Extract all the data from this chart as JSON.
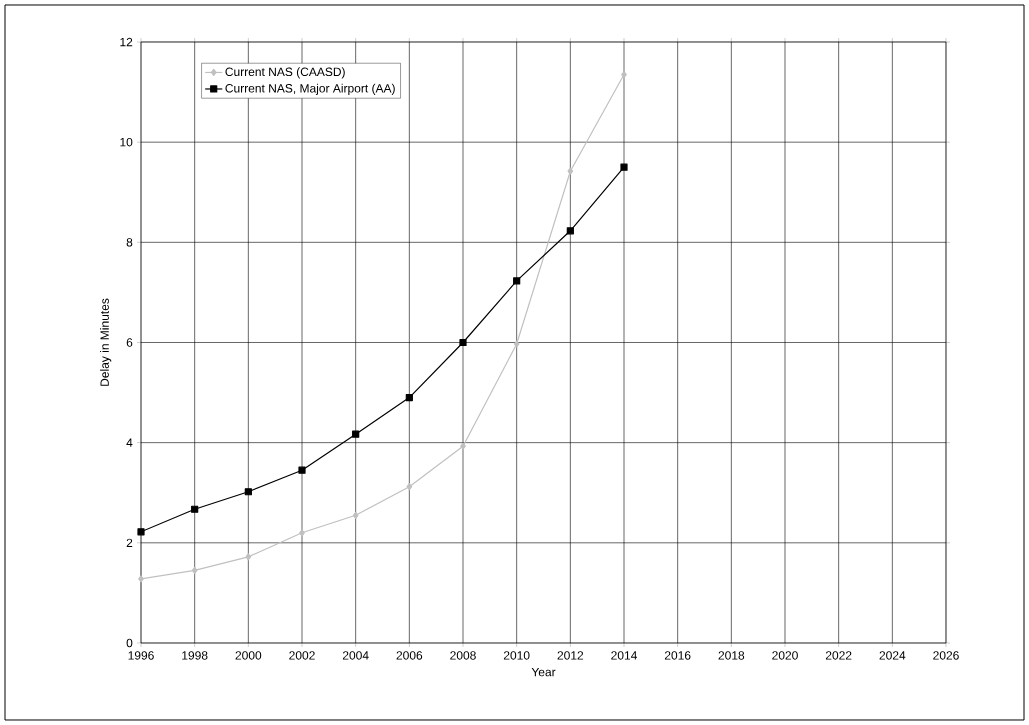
{
  "chart_data": {
    "type": "line",
    "xlabel": "Year",
    "ylabel": "Delay in Minutes",
    "x": [
      1996,
      1998,
      2000,
      2002,
      2004,
      2006,
      2008,
      2010,
      2012,
      2014
    ],
    "series": [
      {
        "name": "Current NAS (CAASD)",
        "color": "#c0c0c0",
        "marker": "diamond",
        "values": [
          1.28,
          1.45,
          1.72,
          2.2,
          2.55,
          3.12,
          3.93,
          5.97,
          9.42,
          11.35
        ]
      },
      {
        "name": "Current NAS, Major Airport (AA)",
        "color": "#000000",
        "marker": "square",
        "values": [
          2.22,
          2.67,
          3.02,
          3.45,
          4.17,
          4.9,
          6.0,
          7.23,
          8.23,
          9.5
        ]
      }
    ],
    "xlim": [
      1996,
      2026
    ],
    "xticks": [
      1996,
      1998,
      2000,
      2002,
      2004,
      2006,
      2008,
      2010,
      2012,
      2014,
      2016,
      2018,
      2020,
      2022,
      2024,
      2026
    ],
    "ylim": [
      0,
      12
    ],
    "yticks": [
      0,
      2,
      4,
      6,
      8,
      10,
      12
    ],
    "grid": true,
    "legend": "top left",
    "line_style": "solid"
  }
}
